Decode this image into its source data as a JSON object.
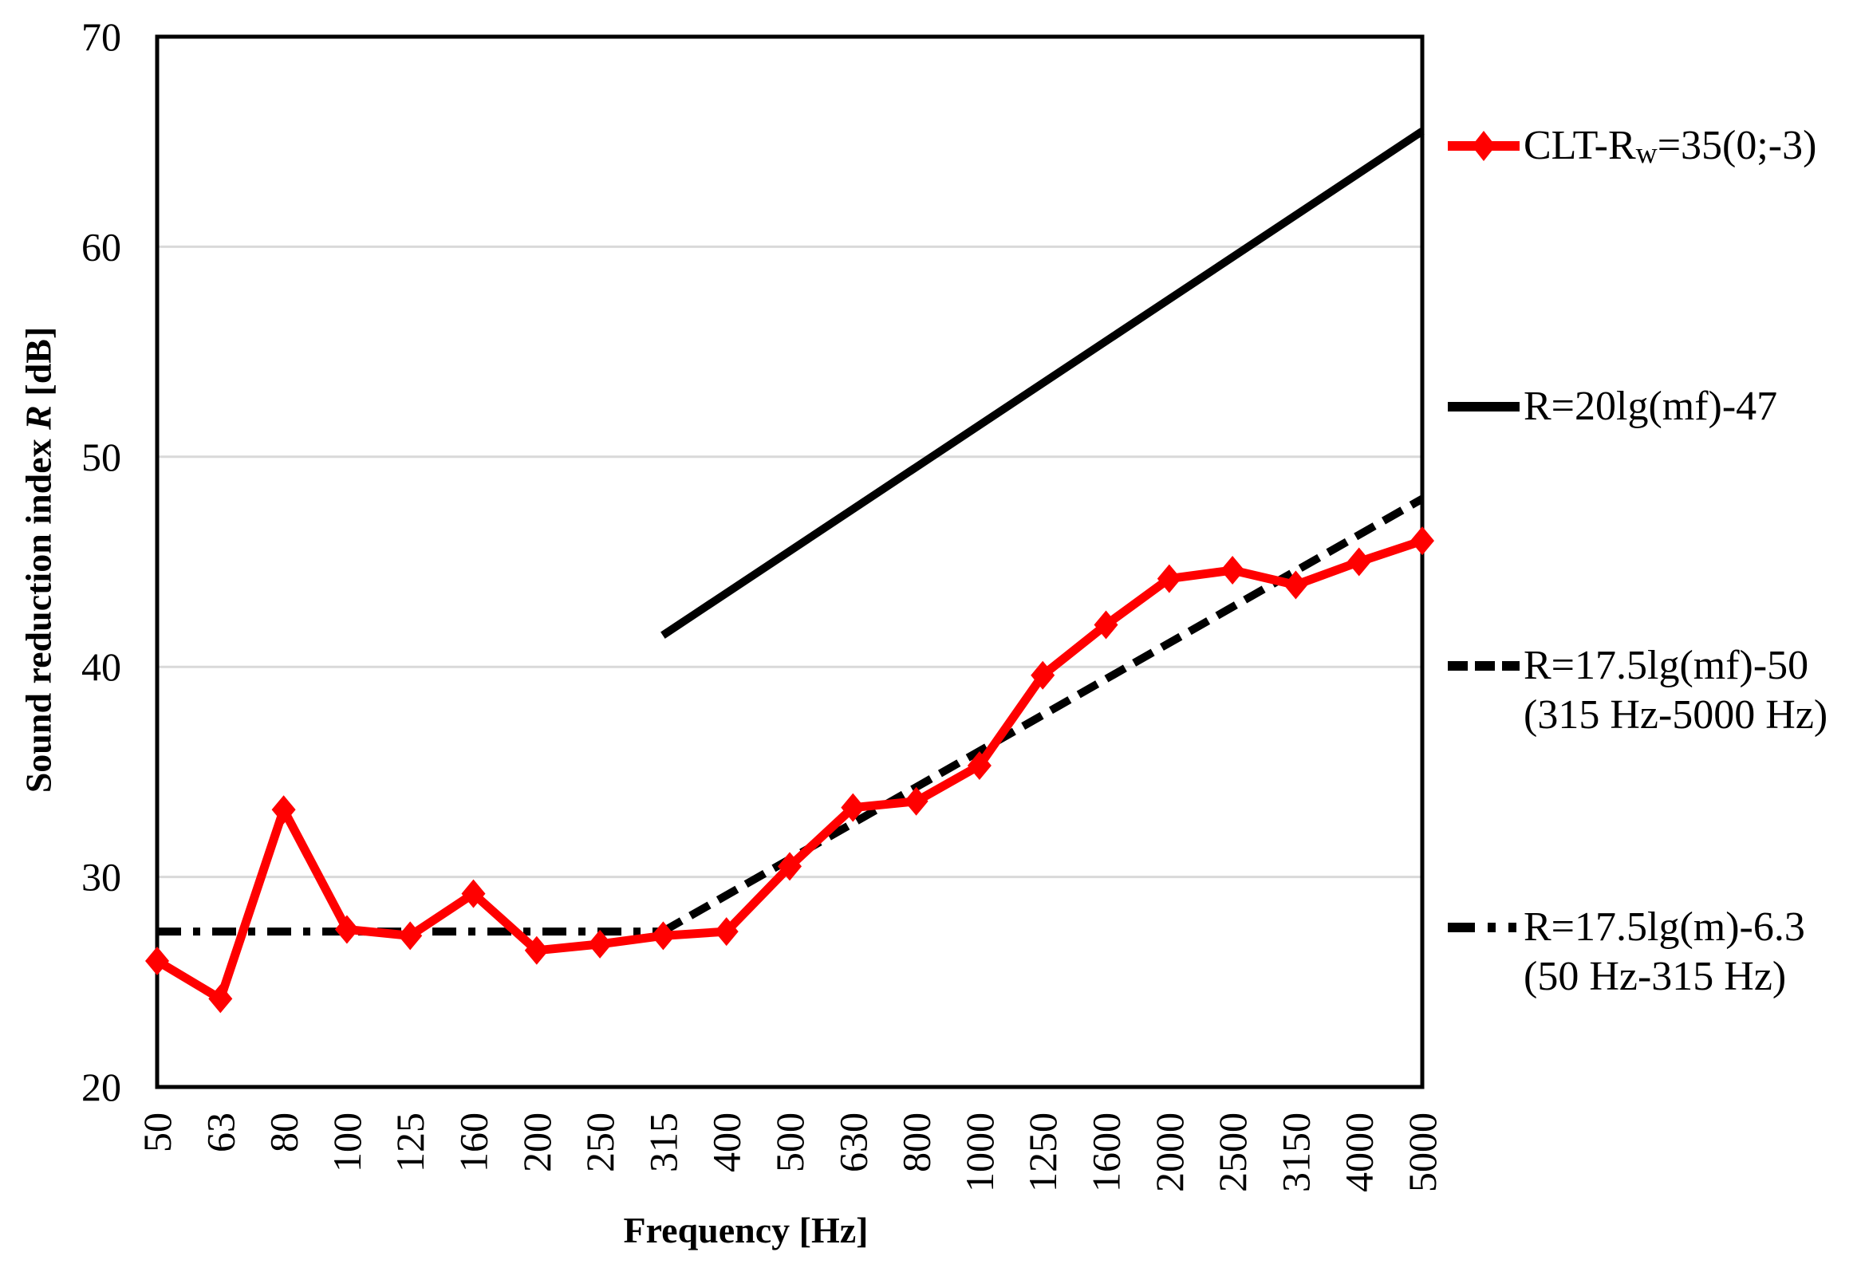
{
  "colors": {
    "series_red": "#FF0000",
    "line_black": "#000000",
    "grid": "#D9D9D9",
    "background": "#FFFFFF",
    "text": "#000000"
  },
  "y_axis": {
    "title_prefix": "Sound reduction index ",
    "title_symbol": "R",
    "title_suffix": " [dB]",
    "min": 20,
    "max": 70,
    "step": 10,
    "ticks": [
      "20",
      "30",
      "40",
      "50",
      "60",
      "70"
    ]
  },
  "x_axis": {
    "title": "Frequency [Hz]",
    "tick_labels": [
      "50",
      "63",
      "80",
      "100",
      "125",
      "160",
      "200",
      "250",
      "315",
      "400",
      "500",
      "630",
      "800",
      "1000",
      "1250",
      "1600",
      "2000",
      "2500",
      "3150",
      "4000",
      "5000"
    ]
  },
  "legend": {
    "entries": [
      {
        "style": "red-line-diamond",
        "text_main": "CLT-R",
        "text_sub": "w",
        "text_rest": "=35(0;-3)"
      },
      {
        "style": "solid-black-line",
        "text_main": "R=20lg(mf)-47"
      },
      {
        "style": "dashed-black-line",
        "text_main": "R=17.5lg(mf)-50",
        "text_line2": "(315 Hz-5000 Hz)"
      },
      {
        "style": "dash-dot-black-line",
        "text_main": "R=17.5lg(m)-6.3",
        "text_line2": "(50 Hz-315 Hz)"
      }
    ]
  },
  "chart_data": {
    "type": "line",
    "title": "",
    "xlabel": "Frequency [Hz]",
    "ylabel": "Sound reduction index R [dB]",
    "ylim": [
      20,
      70
    ],
    "y_gridlines": [
      30,
      40,
      50,
      60
    ],
    "x_scale": "third-octave bands, equal spacing per band (log)",
    "grid": "horizontal",
    "legend_position": "right",
    "categories": [
      50,
      63,
      80,
      100,
      125,
      160,
      200,
      250,
      315,
      400,
      500,
      630,
      800,
      1000,
      1250,
      1600,
      2000,
      2500,
      3150,
      4000,
      5000
    ],
    "series": [
      {
        "name": "CLT-Rw=35(0;-3)",
        "color": "#FF0000",
        "line": "solid",
        "marker": "diamond",
        "values": [
          26.0,
          24.2,
          33.2,
          27.5,
          27.2,
          29.2,
          26.5,
          26.8,
          27.2,
          27.4,
          30.5,
          33.3,
          33.6,
          35.3,
          39.6,
          42.0,
          44.2,
          44.6,
          43.9,
          45.0,
          46.0
        ]
      },
      {
        "name": "R=20lg(mf)-47",
        "color": "#000000",
        "line": "solid",
        "marker": "none",
        "x": [
          315,
          5000
        ],
        "values": [
          41.5,
          65.5
        ]
      },
      {
        "name": "R=17.5lg(mf)-50 (315 Hz-5000 Hz)",
        "color": "#000000",
        "line": "dashed",
        "marker": "none",
        "x": [
          315,
          5000
        ],
        "values": [
          27.4,
          48.0
        ]
      },
      {
        "name": "R=17.5lg(m)-6.3 (50 Hz-315 Hz)",
        "color": "#000000",
        "line": "dash-dot",
        "marker": "none",
        "x": [
          50,
          315
        ],
        "values": [
          27.4,
          27.4
        ]
      }
    ]
  }
}
